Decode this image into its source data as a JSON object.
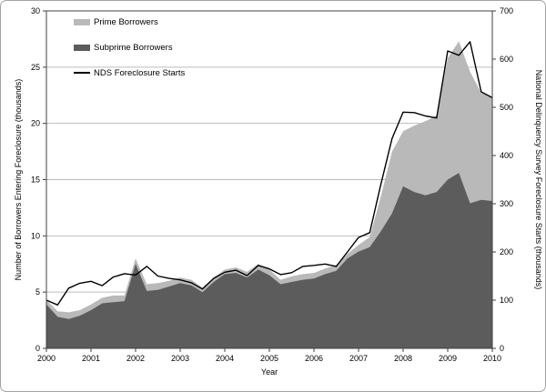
{
  "figure": {
    "x_axis_title": "Year",
    "y_left_title": "Number of Borrowers Entering Foreclosure (thousands)",
    "y_right_title": "National Delinquency Survey Foreclosure Starts (thousands)"
  },
  "colors": {
    "prime_area": "#b9b9b9",
    "subprime_area": "#5c5c5c",
    "nds_line": "#000000",
    "gridline": "#bcbcbc",
    "axis": "#404040",
    "text": "#000000",
    "background": "#ffffff",
    "frame": "#a3a3a3"
  },
  "chart_data": {
    "type": "area",
    "stacked": true,
    "title": "",
    "xlabel": "Year",
    "x_unit": "quarterly, 2000Q1 through 2010Q1",
    "x_tick_labels": [
      "2000",
      "2001",
      "2002",
      "2003",
      "2004",
      "2005",
      "2006",
      "2007",
      "2008",
      "2009",
      "2010"
    ],
    "y_left": {
      "label": "Number of Borrowers Entering Foreclosure (thousands)",
      "min": 0,
      "max": 30,
      "ticks": [
        0,
        5,
        10,
        15,
        20,
        25,
        30
      ],
      "grid": true
    },
    "y_right": {
      "label": "National Delinquency Survey Foreclosure Starts (thousands)",
      "min": 0,
      "max": 700,
      "ticks": [
        0,
        100,
        200,
        300,
        400,
        500,
        600,
        700
      ],
      "grid": false
    },
    "legend": [
      {
        "label": "Prime Borrowers",
        "type": "area",
        "color": "#b9b9b9"
      },
      {
        "label": "Subprime Borrowers",
        "type": "area",
        "color": "#5c5c5c"
      },
      {
        "label": "NDS Foreclosure Starts",
        "type": "line",
        "color": "#000000"
      }
    ],
    "legend_position": "top-left-inside",
    "series": [
      {
        "name": "Subprime Borrowers",
        "axis": "left",
        "render": "area",
        "stack_order": 1,
        "values": [
          3.9,
          2.8,
          2.6,
          2.9,
          3.4,
          4.0,
          4.1,
          4.2,
          7.5,
          5.1,
          5.2,
          5.5,
          5.8,
          5.6,
          5.0,
          5.9,
          6.6,
          6.7,
          6.3,
          7.0,
          6.5,
          5.7,
          5.9,
          6.1,
          6.2,
          6.6,
          6.9,
          8.0,
          8.6,
          9.0,
          10.4,
          12.0,
          14.4,
          13.9,
          13.6,
          13.9,
          15.0,
          15.6,
          12.9,
          13.2,
          13.1
        ]
      },
      {
        "name": "Prime Borrowers",
        "axis": "left",
        "render": "area",
        "stack_order": 2,
        "values": [
          0.4,
          0.5,
          0.6,
          0.5,
          0.5,
          0.5,
          0.6,
          0.5,
          0.5,
          0.6,
          0.6,
          0.5,
          0.5,
          0.5,
          0.4,
          0.4,
          0.4,
          0.5,
          0.5,
          0.5,
          0.5,
          0.4,
          0.5,
          0.5,
          0.5,
          0.5,
          0.5,
          0.4,
          0.6,
          0.9,
          3.1,
          5.5,
          4.9,
          5.9,
          6.6,
          6.8,
          10.8,
          11.7,
          11.7,
          9.5,
          9.2
        ]
      },
      {
        "name": "NDS Foreclosure Starts",
        "axis": "right",
        "render": "line",
        "values": [
          100,
          90,
          125,
          135,
          139,
          130,
          148,
          155,
          152,
          170,
          150,
          145,
          142,
          136,
          123,
          145,
          158,
          162,
          151,
          172,
          165,
          153,
          157,
          170,
          172,
          175,
          170,
          200,
          230,
          240,
          340,
          435,
          490,
          489,
          482,
          478,
          617,
          608,
          636,
          532,
          520
        ]
      }
    ]
  }
}
